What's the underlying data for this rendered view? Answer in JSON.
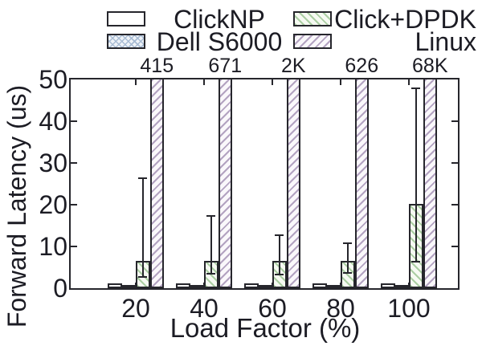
{
  "legend": {
    "items": [
      {
        "id": "clicknp",
        "label": "ClickNP",
        "swatch": "solid-white"
      },
      {
        "id": "dell-s6000",
        "label": "Dell S6000",
        "swatch": "crosshatch-blue"
      },
      {
        "id": "click-dpdk",
        "label": "Click+DPDK",
        "swatch": "diagonal-hatch-green"
      },
      {
        "id": "linux",
        "label": "Linux",
        "swatch": "diagonal-hatch-purple"
      }
    ]
  },
  "chart_data": {
    "type": "bar",
    "title": "",
    "xlabel": "Load Factor (%)",
    "ylabel": "Forward Latency (us)",
    "ylim": [
      0,
      50
    ],
    "yticks": [
      0,
      10,
      20,
      30,
      40,
      50
    ],
    "categories": [
      "20",
      "40",
      "60",
      "80",
      "100"
    ],
    "grid": false,
    "legend_position": "top",
    "series": [
      {
        "name": "ClickNP",
        "values": [
          1.1,
          1.1,
          1.1,
          1.1,
          1.1
        ]
      },
      {
        "name": "Dell S6000",
        "values": [
          0.6,
          0.6,
          0.6,
          0.6,
          0.6
        ]
      },
      {
        "name": "Click+DPDK",
        "values": [
          6.6,
          6.6,
          6.6,
          6.6,
          20.2
        ],
        "error_low": [
          2.5,
          3.2,
          3.0,
          3.5,
          6.2
        ],
        "error_high": [
          26.5,
          17.5,
          12.8,
          11.0,
          48.0
        ]
      },
      {
        "name": "Linux",
        "values": [
          415,
          671,
          2000,
          626,
          68000
        ],
        "clipped_at_ymax": true,
        "value_labels": [
          "415",
          "671",
          "2K",
          "626",
          "68K"
        ]
      }
    ]
  },
  "colors": {
    "text": "#1c1c24",
    "line": "#26262c",
    "clicknp_fill": "#ffffff",
    "dell_fill": "#eff3f8",
    "dell_hatch": "#a9bcd4",
    "dpdk_fill": "#f6faf2",
    "dpdk_hatch": "#abcea3",
    "linux_fill": "#faf8fb",
    "linux_hatch": "#b3a3c1"
  }
}
